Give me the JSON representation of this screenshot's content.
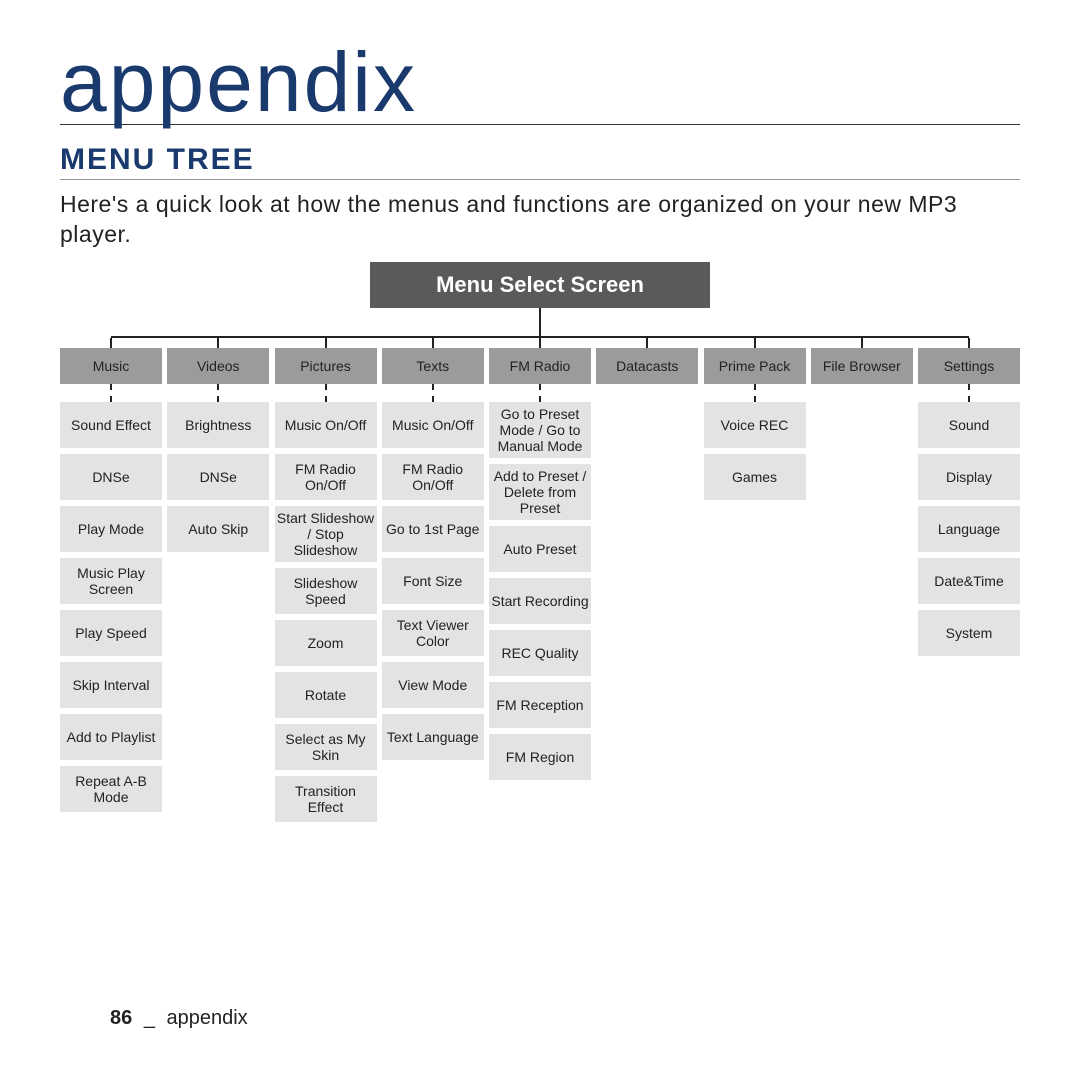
{
  "chapter_title": "appendix",
  "section_title": "MENU TREE",
  "intro_text": "Here's a quick look at how the menus and functions are organized on your new MP3 player.",
  "root_label": "Menu Select Screen",
  "colors": {
    "heading": "#1a3a6e",
    "root_bg": "#5a5a5a",
    "cat_bg": "#9b9b9b",
    "item_bg": "#e3e3e3",
    "line": "#222222"
  },
  "categories": [
    {
      "label": "Music",
      "items": [
        "Sound Effect",
        "DNSe",
        "Play Mode",
        "Music Play Screen",
        "Play Speed",
        "Skip Interval",
        "Add to Playlist",
        "Repeat A-B Mode"
      ]
    },
    {
      "label": "Videos",
      "items": [
        "Brightness",
        "DNSe",
        "Auto Skip"
      ]
    },
    {
      "label": "Pictures",
      "items": [
        "Music On/Off",
        "FM Radio On/Off",
        "Start Slideshow / Stop Slideshow",
        "Slideshow Speed",
        "Zoom",
        "Rotate",
        "Select as My Skin",
        "Transition Effect"
      ]
    },
    {
      "label": "Texts",
      "items": [
        "Music On/Off",
        "FM Radio On/Off",
        "Go to 1st Page",
        "Font Size",
        "Text Viewer Color",
        "View Mode",
        "Text Language"
      ]
    },
    {
      "label": "FM Radio",
      "items": [
        "Go to Preset Mode / Go to Manual Mode",
        "Add to Preset / Delete from Preset",
        "Auto Preset",
        "Start Recording",
        "REC Quality",
        "FM Reception",
        "FM Region"
      ]
    },
    {
      "label": "Datacasts",
      "items": []
    },
    {
      "label": "Prime Pack",
      "items": [
        "Voice REC",
        "Games"
      ]
    },
    {
      "label": "File Browser",
      "items": []
    },
    {
      "label": "Settings",
      "items": [
        "Sound",
        "Display",
        "Language",
        "Date&Time",
        "System"
      ]
    }
  ],
  "footer": {
    "page": "86",
    "label": "appendix"
  }
}
